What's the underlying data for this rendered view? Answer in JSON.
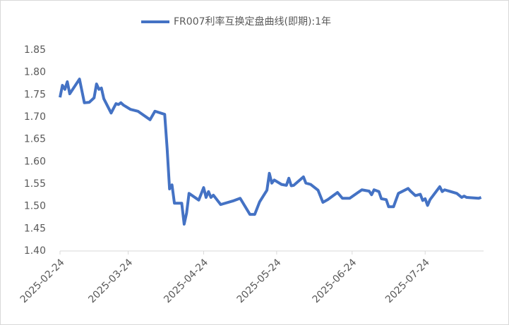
{
  "chart_data": {
    "type": "line",
    "series": [
      {
        "name": "FR007利率互换定盘曲线(即期):1年",
        "color": "#4472c4",
        "x": [
          "2025-02-24",
          "2025-02-25",
          "2025-02-26",
          "2025-02-27",
          "2025-02-28",
          "2025-03-04",
          "2025-03-06",
          "2025-03-08",
          "2025-03-10",
          "2025-03-11",
          "2025-03-12",
          "2025-03-13",
          "2025-03-14",
          "2025-03-17",
          "2025-03-19",
          "2025-03-20",
          "2025-03-21",
          "2025-03-22",
          "2025-03-25",
          "2025-03-28",
          "2025-04-02",
          "2025-04-04",
          "2025-04-08",
          "2025-04-09",
          "2025-04-10",
          "2025-04-11",
          "2025-04-12",
          "2025-04-15",
          "2025-04-16",
          "2025-04-17",
          "2025-04-18",
          "2025-04-22",
          "2025-04-24",
          "2025-04-25",
          "2025-04-26",
          "2025-04-27",
          "2025-04-28",
          "2025-05-01",
          "2025-05-06",
          "2025-05-09",
          "2025-05-13",
          "2025-05-15",
          "2025-05-17",
          "2025-05-20",
          "2025-05-21",
          "2025-05-22",
          "2025-05-23",
          "2025-05-26",
          "2025-05-28",
          "2025-05-29",
          "2025-05-30",
          "2025-05-31",
          "2025-06-04",
          "2025-06-05",
          "2025-06-07",
          "2025-06-10",
          "2025-06-12",
          "2025-06-14",
          "2025-06-18",
          "2025-06-20",
          "2025-06-23",
          "2025-06-28",
          "2025-07-01",
          "2025-07-02",
          "2025-07-03",
          "2025-07-05",
          "2025-07-06",
          "2025-07-08",
          "2025-07-09",
          "2025-07-11",
          "2025-07-13",
          "2025-07-17",
          "2025-07-18",
          "2025-07-20",
          "2025-07-22",
          "2025-07-23",
          "2025-07-24",
          "2025-07-25",
          "2025-07-26",
          "2025-07-30",
          "2025-07-31",
          "2025-08-01",
          "2025-08-06",
          "2025-08-08",
          "2025-08-09",
          "2025-08-10",
          "2025-08-15",
          "2025-08-16"
        ],
        "values": [
          1.744,
          1.771,
          1.762,
          1.779,
          1.752,
          1.785,
          1.732,
          1.733,
          1.743,
          1.774,
          1.762,
          1.765,
          1.741,
          1.709,
          1.73,
          1.728,
          1.732,
          1.727,
          1.717,
          1.713,
          1.694,
          1.713,
          1.706,
          1.63,
          1.539,
          1.548,
          1.507,
          1.507,
          1.46,
          1.485,
          1.529,
          1.514,
          1.542,
          1.52,
          1.533,
          1.52,
          1.525,
          1.504,
          1.512,
          1.518,
          1.482,
          1.482,
          1.51,
          1.536,
          1.574,
          1.552,
          1.559,
          1.549,
          1.547,
          1.563,
          1.546,
          1.547,
          1.566,
          1.552,
          1.549,
          1.536,
          1.509,
          1.515,
          1.531,
          1.518,
          1.518,
          1.537,
          1.534,
          1.526,
          1.537,
          1.533,
          1.517,
          1.515,
          1.499,
          1.499,
          1.529,
          1.54,
          1.534,
          1.524,
          1.527,
          1.513,
          1.517,
          1.502,
          1.515,
          1.544,
          1.533,
          1.537,
          1.529,
          1.52,
          1.523,
          1.52,
          1.518,
          1.52
        ]
      }
    ],
    "xlim": [
      "2025-02-24",
      "2025-08-17"
    ],
    "xticks": [
      "2025-02-24",
      "2025-03-24",
      "2025-04-24",
      "2025-05-24",
      "2025-06-24",
      "2025-07-24"
    ],
    "ylim": [
      1.4,
      1.85
    ],
    "yticks": [
      {
        "value": 1.4,
        "label": "1.40"
      },
      {
        "value": 1.45,
        "label": "1.45"
      },
      {
        "value": 1.5,
        "label": "1.50"
      },
      {
        "value": 1.55,
        "label": "1.55"
      },
      {
        "value": 1.6,
        "label": "1.60"
      },
      {
        "value": 1.65,
        "label": "1.65"
      },
      {
        "value": 1.7,
        "label": "1.70"
      },
      {
        "value": 1.75,
        "label": "1.75"
      },
      {
        "value": 1.8,
        "label": "1.80"
      },
      {
        "value": 1.85,
        "label": "1.85"
      }
    ],
    "legend": "top",
    "grid": false
  }
}
